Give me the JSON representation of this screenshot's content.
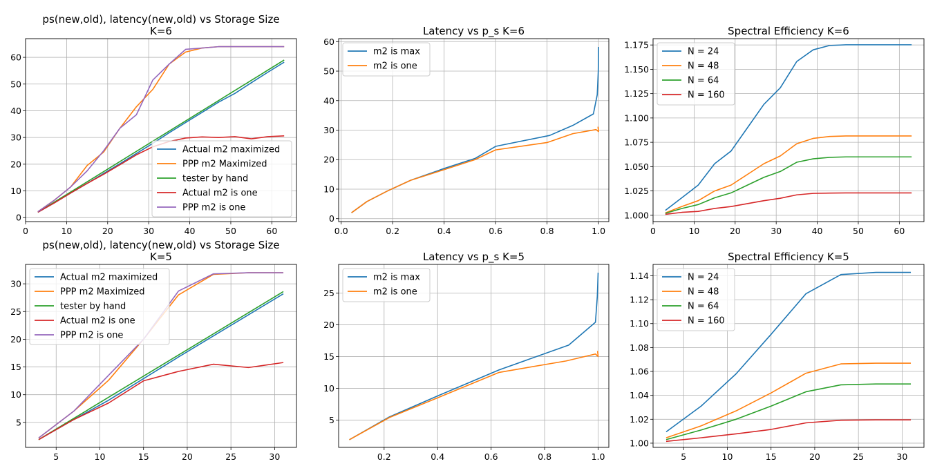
{
  "chart_data": [
    {
      "type": "line",
      "title": "ps(new,old), latency(new,old) vs Storage Size\nK=6",
      "xlim": [
        0,
        66
      ],
      "ylim": [
        -1.5,
        67
      ],
      "xticks": [
        0,
        10,
        20,
        30,
        40,
        50,
        60
      ],
      "yticks": [
        0,
        10,
        20,
        30,
        40,
        50,
        60
      ],
      "grid": true,
      "legend_position": "lower-right",
      "series": [
        {
          "name": "Actual m2 maximized",
          "color": "#1f77b4",
          "x": [
            3,
            7,
            11,
            15,
            19,
            23,
            27,
            31,
            35,
            39,
            43,
            47,
            51,
            55,
            59,
            63
          ],
          "y": [
            2,
            5.5,
            9.2,
            12.8,
            16.5,
            20.2,
            24,
            27.8,
            31.8,
            35.6,
            39.4,
            43.2,
            46.5,
            50.5,
            54.4,
            58.2
          ]
        },
        {
          "name": "PPP m2 Maximized",
          "color": "#ff7f0e",
          "x": [
            3,
            7,
            11,
            15,
            19,
            23,
            27,
            31,
            35,
            39,
            43,
            47,
            51,
            55,
            59,
            63
          ],
          "y": [
            2.2,
            6.5,
            11.5,
            19.5,
            24.5,
            33.5,
            41.5,
            48,
            57.5,
            62,
            63.5,
            64,
            64,
            64,
            64,
            64
          ]
        },
        {
          "name": "tester by hand",
          "color": "#2ca02c",
          "x": [
            3,
            63
          ],
          "y": [
            2,
            59
          ]
        },
        {
          "name": "Actual m2 is one",
          "color": "#d62728",
          "x": [
            3,
            7,
            11,
            15,
            19,
            23,
            27,
            31,
            35,
            39,
            43,
            47,
            51,
            55,
            59,
            63
          ],
          "y": [
            2,
            5.5,
            9.2,
            12.8,
            16.2,
            19.8,
            23.5,
            26.5,
            28.5,
            29.8,
            30.2,
            30,
            30.3,
            29.5,
            30.3,
            30.6
          ]
        },
        {
          "name": "PPP m2 is one",
          "color": "#9467bd",
          "x": [
            3,
            7,
            11,
            15,
            19,
            23,
            27,
            31,
            35,
            39,
            43,
            47,
            51,
            55,
            59,
            63
          ],
          "y": [
            2.2,
            6.5,
            11.5,
            17.5,
            25,
            33.5,
            38.5,
            51.5,
            57.5,
            63,
            63.5,
            64,
            64,
            64,
            64,
            64
          ]
        }
      ]
    },
    {
      "type": "line",
      "title": "Latency vs p_s K=6",
      "xlim": [
        -0.01,
        1.04
      ],
      "ylim": [
        -1,
        61
      ],
      "xticks": [
        0.0,
        0.2,
        0.4,
        0.6,
        0.8,
        1.0
      ],
      "yticks": [
        0,
        10,
        20,
        30,
        40,
        50,
        60
      ],
      "grid": true,
      "legend_position": "top-left",
      "series": [
        {
          "name": "m2 is max",
          "color": "#1f77b4",
          "x": [
            0.04,
            0.1,
            0.18,
            0.27,
            0.4,
            0.52,
            0.6,
            0.81,
            0.9,
            0.98,
            0.995,
            0.999,
            1.0
          ],
          "y": [
            2,
            5.8,
            9.4,
            13,
            17,
            20.4,
            24.5,
            28.2,
            31.6,
            35.5,
            42,
            50,
            58.2
          ]
        },
        {
          "name": "m2 is one",
          "color": "#ff7f0e",
          "x": [
            0.04,
            0.1,
            0.18,
            0.27,
            0.4,
            0.52,
            0.6,
            0.8,
            0.9,
            0.99,
            1.0,
            0.998,
            1.0
          ],
          "y": [
            2,
            5.8,
            9.4,
            13,
            16.6,
            20,
            23.3,
            25.8,
            28.8,
            30.2,
            29.5,
            31,
            30.5
          ]
        }
      ]
    },
    {
      "type": "line",
      "title": "Spectral Efficiency K=6",
      "xlim": [
        0,
        66
      ],
      "ylim": [
        0.9935,
        1.1815
      ],
      "xticks": [
        0,
        10,
        20,
        30,
        40,
        50,
        60
      ],
      "yticks": [
        1.0,
        1.025,
        1.05,
        1.075,
        1.1,
        1.125,
        1.15,
        1.175
      ],
      "grid": true,
      "legend_position": "top-left",
      "series": [
        {
          "name": "N = 24",
          "color": "#1f77b4",
          "x": [
            3,
            7,
            11,
            15,
            19,
            23,
            27,
            31,
            35,
            39,
            43,
            47,
            51,
            55,
            59,
            63
          ],
          "y": [
            1.005,
            1.018,
            1.031,
            1.053,
            1.066,
            1.09,
            1.114,
            1.131,
            1.158,
            1.17,
            1.1745,
            1.1752,
            1.1752,
            1.1752,
            1.1752,
            1.1752
          ]
        },
        {
          "name": "N = 48",
          "color": "#ff7f0e",
          "x": [
            3,
            7,
            11,
            15,
            19,
            23,
            27,
            31,
            35,
            39,
            43,
            47,
            51,
            55,
            59,
            63
          ],
          "y": [
            1.0025,
            1.009,
            1.015,
            1.025,
            1.031,
            1.042,
            1.053,
            1.061,
            1.0735,
            1.079,
            1.081,
            1.0815,
            1.0815,
            1.0815,
            1.0815,
            1.0815
          ]
        },
        {
          "name": "N = 64",
          "color": "#2ca02c",
          "x": [
            3,
            7,
            11,
            15,
            19,
            23,
            27,
            31,
            35,
            39,
            43,
            47,
            51,
            55,
            59,
            63
          ],
          "y": [
            1.002,
            1.007,
            1.011,
            1.018,
            1.023,
            1.031,
            1.039,
            1.045,
            1.0545,
            1.058,
            1.0595,
            1.06,
            1.06,
            1.06,
            1.06,
            1.06
          ]
        },
        {
          "name": "N = 160",
          "color": "#d62728",
          "x": [
            3,
            7,
            11,
            15,
            19,
            23,
            27,
            31,
            35,
            39,
            43,
            47,
            51,
            55,
            59,
            63
          ],
          "y": [
            1.001,
            1.003,
            1.004,
            1.007,
            1.009,
            1.012,
            1.015,
            1.0175,
            1.021,
            1.0225,
            1.0228,
            1.023,
            1.023,
            1.023,
            1.023,
            1.023
          ]
        }
      ]
    },
    {
      "type": "line",
      "title": "ps(new,old), latency(new,old) vs Storage Size\nK=5",
      "xlim": [
        1.5,
        32.5
      ],
      "ylim": [
        0.5,
        33.5
      ],
      "xticks": [
        5,
        10,
        15,
        20,
        25,
        30
      ],
      "yticks": [
        5,
        10,
        15,
        20,
        25,
        30
      ],
      "grid": true,
      "legend_position": "top-left",
      "series": [
        {
          "name": "Actual m2 maximized",
          "color": "#1f77b4",
          "x": [
            3,
            7,
            11,
            15,
            19,
            23,
            27,
            31
          ],
          "y": [
            1.9,
            5.5,
            9,
            12.9,
            16.8,
            20.6,
            24.4,
            28.2
          ]
        },
        {
          "name": "PPP m2 Maximized",
          "color": "#ff7f0e",
          "x": [
            3,
            7,
            11,
            15,
            19,
            23,
            27,
            31
          ],
          "y": [
            2.2,
            7,
            12.6,
            20,
            28,
            31.7,
            32,
            32
          ]
        },
        {
          "name": "tester by hand",
          "color": "#2ca02c",
          "x": [
            3,
            31
          ],
          "y": [
            1.9,
            28.6
          ]
        },
        {
          "name": "Actual m2 is one",
          "color": "#d62728",
          "x": [
            3,
            7,
            11,
            15,
            19,
            23,
            27,
            31
          ],
          "y": [
            1.9,
            5.5,
            8.5,
            12.5,
            14.2,
            15.5,
            14.9,
            15.8
          ]
        },
        {
          "name": "PPP m2 is one",
          "color": "#9467bd",
          "x": [
            3,
            7,
            11,
            15,
            19,
            23,
            27,
            31
          ],
          "y": [
            2.2,
            7,
            13.5,
            20,
            28.7,
            31.8,
            32,
            32
          ]
        }
      ]
    },
    {
      "type": "line",
      "title": "Latency vs p_s K=5",
      "xlim": [
        0.03,
        1.04
      ],
      "ylim": [
        0.7,
        29.5
      ],
      "xticks": [
        0.2,
        0.4,
        0.6,
        0.8,
        1.0
      ],
      "yticks": [
        5,
        10,
        15,
        20,
        25
      ],
      "grid": true,
      "legend_position": "top-left",
      "series": [
        {
          "name": "m2 is max",
          "color": "#1f77b4",
          "x": [
            0.07,
            0.22,
            0.4,
            0.63,
            0.89,
            0.99,
            0.997,
            1.0
          ],
          "y": [
            1.9,
            5.5,
            8.8,
            12.9,
            16.8,
            20.4,
            24.5,
            28.2
          ]
        },
        {
          "name": "m2 is one",
          "color": "#ff7f0e",
          "x": [
            0.07,
            0.22,
            0.4,
            0.63,
            0.88,
            0.99,
            1.0,
            0.998,
            1.0
          ],
          "y": [
            1.9,
            5.4,
            8.5,
            12.5,
            14.3,
            15.4,
            15.0,
            15.8,
            15.2
          ]
        }
      ]
    },
    {
      "type": "line",
      "title": "Spectral Efficiency K=5",
      "xlim": [
        1.5,
        32.5
      ],
      "ylim": [
        0.9965,
        1.1495
      ],
      "xticks": [
        5,
        10,
        15,
        20,
        25,
        30
      ],
      "yticks": [
        1.0,
        1.02,
        1.04,
        1.06,
        1.08,
        1.1,
        1.12,
        1.14
      ],
      "grid": true,
      "legend_position": "top-left",
      "series": [
        {
          "name": "N = 24",
          "color": "#1f77b4",
          "x": [
            3,
            7,
            11,
            15,
            19,
            23,
            27,
            31
          ],
          "y": [
            1.0095,
            1.031,
            1.058,
            1.091,
            1.125,
            1.141,
            1.1428,
            1.1428
          ]
        },
        {
          "name": "N = 48",
          "color": "#ff7f0e",
          "x": [
            3,
            7,
            11,
            15,
            19,
            23,
            27,
            31
          ],
          "y": [
            1.0045,
            1.0145,
            1.027,
            1.042,
            1.0585,
            1.0663,
            1.0669,
            1.0669
          ]
        },
        {
          "name": "N = 64",
          "color": "#2ca02c",
          "x": [
            3,
            7,
            11,
            15,
            19,
            23,
            27,
            31
          ],
          "y": [
            1.003,
            1.011,
            1.02,
            1.031,
            1.043,
            1.0488,
            1.0495,
            1.0495
          ]
        },
        {
          "name": "N = 160",
          "color": "#d62728",
          "x": [
            3,
            7,
            11,
            15,
            19,
            23,
            27,
            31
          ],
          "y": [
            1.0015,
            1.0045,
            1.0078,
            1.0115,
            1.017,
            1.0192,
            1.0195,
            1.0195
          ]
        }
      ]
    }
  ]
}
